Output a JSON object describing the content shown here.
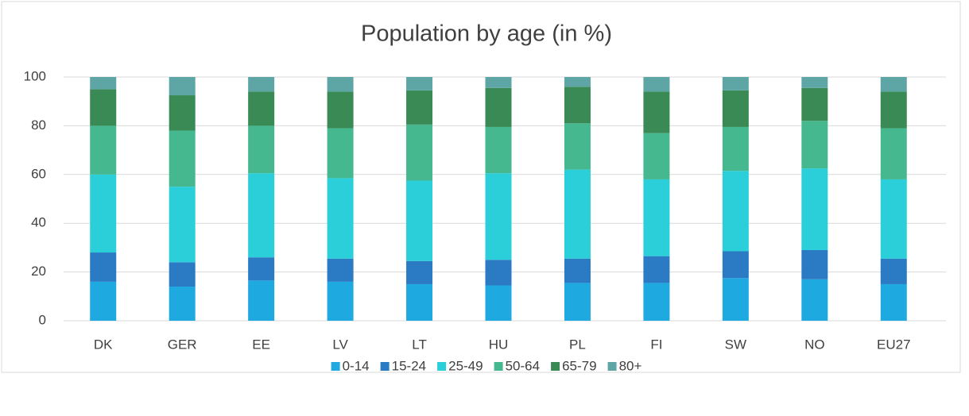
{
  "chart_data": {
    "type": "stacked_bar",
    "title": "Population by age (in %)",
    "categories": [
      "DK",
      "GER",
      "EE",
      "LV",
      "LT",
      "HU",
      "PL",
      "FI",
      "SW",
      "NO",
      "EU27"
    ],
    "series": [
      {
        "name": "0-14",
        "color": "#1fa9e1",
        "values": [
          16,
          14,
          16.5,
          16,
          15,
          14.5,
          15.5,
          15.5,
          17.5,
          17,
          15
        ]
      },
      {
        "name": "15-24",
        "color": "#2a7ac4",
        "values": [
          12,
          10,
          9.5,
          9.5,
          9.5,
          10.5,
          10,
          11,
          11,
          12,
          10.5
        ]
      },
      {
        "name": "25-49",
        "color": "#2acfd9",
        "values": [
          32,
          31,
          34.5,
          33,
          33,
          35.5,
          36.5,
          31.5,
          33,
          33.5,
          32.5
        ]
      },
      {
        "name": "50-64",
        "color": "#45b890",
        "values": [
          20,
          23,
          19.5,
          20.5,
          23,
          19,
          19,
          19,
          18,
          19.5,
          21
        ]
      },
      {
        "name": "65-79",
        "color": "#3a8a55",
        "values": [
          15,
          14.5,
          14,
          15,
          14,
          16,
          15,
          17,
          15,
          13.5,
          15
        ]
      },
      {
        "name": "80+",
        "color": "#5ea6a6",
        "values": [
          5,
          7.5,
          6,
          6,
          5.5,
          4.5,
          4,
          6,
          5.5,
          4.5,
          6
        ]
      }
    ],
    "ylim": [
      0,
      100
    ],
    "yticks": [
      0,
      20,
      40,
      60,
      80,
      100
    ],
    "grid": true,
    "legend": "bottom"
  }
}
